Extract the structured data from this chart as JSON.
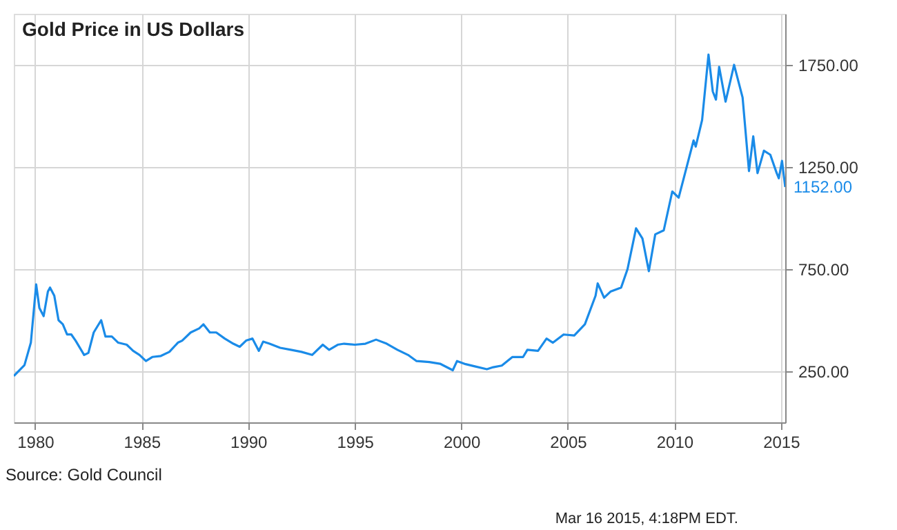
{
  "chart_data": {
    "type": "line",
    "title": "Gold Price in US Dollars",
    "x": [
      1979.0,
      1979.5,
      1979.8,
      1980.05,
      1980.2,
      1980.4,
      1980.6,
      1980.7,
      1980.9,
      1981.1,
      1981.3,
      1981.5,
      1981.7,
      1981.9,
      1982.3,
      1982.5,
      1982.75,
      1983.1,
      1983.3,
      1983.6,
      1983.9,
      1984.3,
      1984.6,
      1984.9,
      1985.2,
      1985.5,
      1985.9,
      1986.3,
      1986.7,
      1986.9,
      1987.3,
      1987.7,
      1987.9,
      1988.2,
      1988.5,
      1988.9,
      1989.3,
      1989.6,
      1989.9,
      1990.2,
      1990.5,
      1990.7,
      1991.0,
      1991.5,
      1992.0,
      1992.5,
      1993.0,
      1993.5,
      1993.8,
      1994.2,
      1994.5,
      1995.0,
      1995.5,
      1996.0,
      1996.5,
      1997.0,
      1997.5,
      1997.9,
      1998.5,
      1999.0,
      1999.6,
      1999.8,
      2000.2,
      2000.6,
      2001.2,
      2001.5,
      2001.9,
      2002.4,
      2002.9,
      2003.1,
      2003.6,
      2004.0,
      2004.3,
      2004.8,
      2005.3,
      2005.8,
      2006.3,
      2006.4,
      2006.7,
      2007.0,
      2007.5,
      2007.8,
      2008.2,
      2008.5,
      2008.8,
      2009.1,
      2009.5,
      2009.9,
      2010.2,
      2010.5,
      2010.9,
      2011.0,
      2011.3,
      2011.6,
      2011.8,
      2011.95,
      2012.1,
      2012.4,
      2012.8,
      2013.0,
      2013.2,
      2013.5,
      2013.7,
      2013.9,
      2014.2,
      2014.5,
      2014.8,
      2014.9,
      2015.05,
      2015.2
    ],
    "series": [
      {
        "color": "#1a8be8",
        "values": [
          227,
          280,
          390,
          675,
          560,
          520,
          640,
          660,
          620,
          500,
          480,
          430,
          430,
          400,
          330,
          340,
          440,
          500,
          420,
          420,
          390,
          380,
          350,
          330,
          300,
          320,
          325,
          345,
          390,
          400,
          440,
          460,
          480,
          440,
          440,
          410,
          385,
          370,
          400,
          410,
          350,
          395,
          385,
          365,
          355,
          345,
          330,
          380,
          355,
          380,
          385,
          380,
          385,
          405,
          385,
          355,
          330,
          300,
          295,
          287,
          255,
          300,
          285,
          275,
          260,
          270,
          278,
          320,
          320,
          355,
          350,
          410,
          390,
          430,
          425,
          480,
          620,
          680,
          610,
          640,
          660,
          750,
          950,
          900,
          740,
          920,
          940,
          1130,
          1100,
          1220,
          1380,
          1350,
          1480,
          1800,
          1620,
          1580,
          1740,
          1570,
          1750,
          1670,
          1590,
          1230,
          1400,
          1220,
          1330,
          1310,
          1220,
          1195,
          1280,
          1152
        ]
      }
    ],
    "xlim": [
      1979.0,
      2015.2
    ],
    "ylim": [
      0,
      2000
    ],
    "xticks": [
      1980,
      1985,
      1990,
      1995,
      2000,
      2005,
      2010,
      2015
    ],
    "yticks": [
      {
        "value": 250,
        "label": "250.00"
      },
      {
        "value": 750,
        "label": "750.00"
      },
      {
        "value": 1250,
        "label": "1250.00"
      },
      {
        "value": 1750,
        "label": "1750.00"
      }
    ],
    "grid": true,
    "annotations": [
      {
        "text": "1152.00",
        "x": 2015.2,
        "y": 1152
      },
      "Source: Gold Council",
      "Mar 16 2015, 4:18PM EDT."
    ]
  }
}
